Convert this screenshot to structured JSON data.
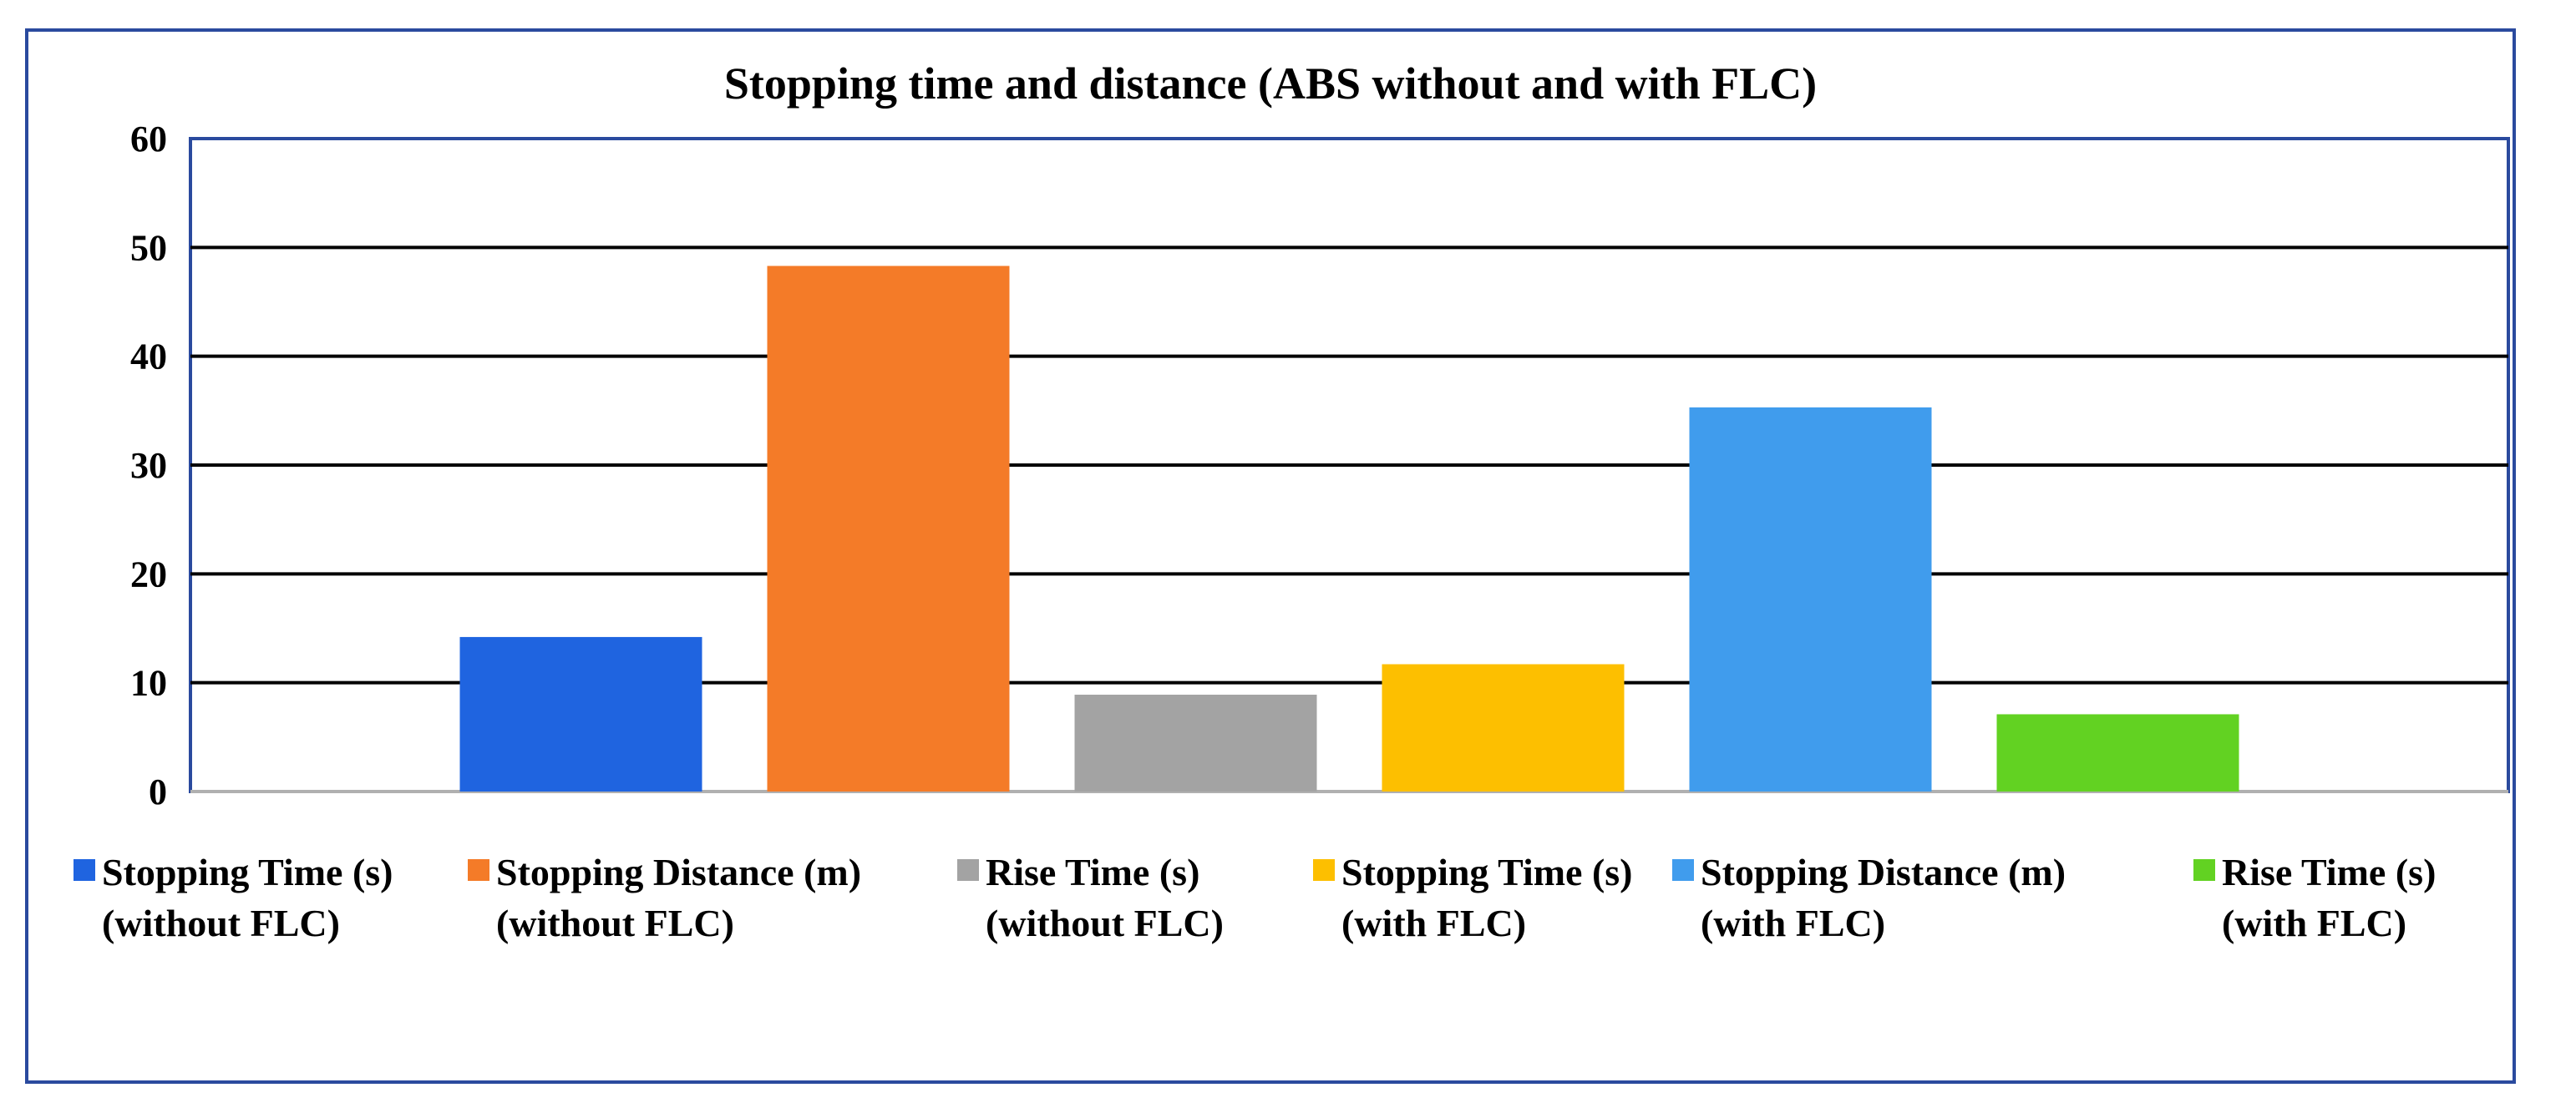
{
  "chart_data": {
    "type": "bar",
    "title": "Stopping time and distance (ABS without and with FLC)",
    "xlabel": "",
    "ylabel": "",
    "ylim": [
      0,
      60
    ],
    "yticks": [
      0,
      10,
      20,
      30,
      40,
      50,
      60
    ],
    "grid": true,
    "legend_position": "bottom",
    "series": [
      {
        "name_lines": [
          "Stopping Time (s)",
          "(without FLC)"
        ],
        "value": 14.2,
        "color": "#1f64e0"
      },
      {
        "name_lines": [
          "Stopping Distance (m)",
          "(without FLC)"
        ],
        "value": 48.3,
        "color": "#f47b28"
      },
      {
        "name_lines": [
          "Rise Time (s)",
          "(without FLC)"
        ],
        "value": 8.9,
        "color": "#a3a3a3"
      },
      {
        "name_lines": [
          "Stopping Time (s)",
          "(with FLC)"
        ],
        "value": 11.7,
        "color": "#fdbf00"
      },
      {
        "name_lines": [
          "Stopping Distance (m)",
          "(with FLC)"
        ],
        "value": 35.3,
        "color": "#409ced"
      },
      {
        "name_lines": [
          "Rise Time (s)",
          "(with FLC)"
        ],
        "value": 7.1,
        "color": "#62d222"
      }
    ]
  }
}
